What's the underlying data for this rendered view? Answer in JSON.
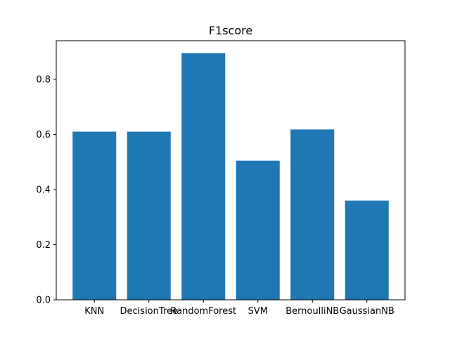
{
  "chart_data": {
    "type": "bar",
    "title": "F1score",
    "xlabel": "",
    "ylabel": "",
    "categories": [
      "KNN",
      "DecisionTree",
      "RandomForest",
      "SVM",
      "BernoulliNB",
      "GaussianNB"
    ],
    "values": [
      0.61,
      0.61,
      0.895,
      0.505,
      0.618,
      0.36
    ],
    "ylim": [
      0,
      0.94
    ],
    "yticks": [
      0.0,
      0.2,
      0.4,
      0.6,
      0.8
    ],
    "ytick_labels": [
      "0.0",
      "0.2",
      "0.4",
      "0.6",
      "0.8"
    ],
    "bar_color": "#1f77b4",
    "grid": false,
    "legend": "none"
  }
}
